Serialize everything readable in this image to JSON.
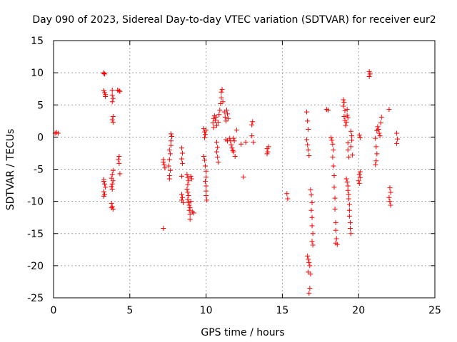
{
  "chart_data": {
    "type": "scatter",
    "title": "Day 090 of 2023, Sidereal Day-to-day VTEC variation (SDTVAR) for receiver eur2",
    "xlabel": "GPS time / hours",
    "ylabel": "SDTVAR / TECUs",
    "xlim": [
      0,
      25
    ],
    "ylim": [
      -25,
      15
    ],
    "xticks": [
      0,
      5,
      10,
      15,
      20,
      25
    ],
    "yticks": [
      -25,
      -20,
      -15,
      -10,
      -5,
      0,
      5,
      10,
      15
    ],
    "grid": true,
    "marker": "plus",
    "color": "#ff0000",
    "points": [
      [
        0.1,
        0.6
      ],
      [
        0.2,
        0.7
      ],
      [
        0.3,
        0.6
      ],
      [
        3.3,
        10.0
      ],
      [
        3.3,
        9.9
      ],
      [
        3.35,
        9.8
      ],
      [
        3.3,
        7.2
      ],
      [
        3.35,
        6.9
      ],
      [
        3.4,
        6.6
      ],
      [
        3.4,
        6.3
      ],
      [
        3.3,
        -6.6
      ],
      [
        3.3,
        -6.9
      ],
      [
        3.35,
        -7.3
      ],
      [
        3.4,
        -7.8
      ],
      [
        3.3,
        -8.5
      ],
      [
        3.35,
        -8.9
      ],
      [
        3.3,
        -9.2
      ],
      [
        3.85,
        7.3
      ],
      [
        3.85,
        6.5
      ],
      [
        3.9,
        6.0
      ],
      [
        3.85,
        5.5
      ],
      [
        3.9,
        3.2
      ],
      [
        3.85,
        2.7
      ],
      [
        3.9,
        2.3
      ],
      [
        3.9,
        -5.2
      ],
      [
        3.85,
        -5.8
      ],
      [
        3.8,
        -6.4
      ],
      [
        3.9,
        -6.8
      ],
      [
        3.85,
        -7.3
      ],
      [
        3.8,
        -7.7
      ],
      [
        3.85,
        -8.1
      ],
      [
        3.8,
        -10.3
      ],
      [
        3.85,
        -10.8
      ],
      [
        3.9,
        -11.2
      ],
      [
        3.8,
        -11.0
      ],
      [
        4.2,
        7.3
      ],
      [
        4.3,
        7.2
      ],
      [
        4.35,
        7.1
      ],
      [
        4.3,
        -3.0
      ],
      [
        4.25,
        -3.5
      ],
      [
        4.3,
        -4.1
      ],
      [
        4.35,
        -5.7
      ],
      [
        7.2,
        -14.2
      ],
      [
        7.2,
        -3.9
      ],
      [
        7.25,
        -4.3
      ],
      [
        7.3,
        -4.8
      ],
      [
        7.2,
        -3.5
      ],
      [
        7.55,
        -4.5
      ],
      [
        7.6,
        -3.5
      ],
      [
        7.65,
        -2.6
      ],
      [
        7.6,
        -2.0
      ],
      [
        7.7,
        -1.3
      ],
      [
        7.7,
        -0.6
      ],
      [
        7.75,
        0.1
      ],
      [
        7.7,
        0.5
      ],
      [
        7.65,
        -5.2
      ],
      [
        7.6,
        -6.0
      ],
      [
        7.6,
        -6.5
      ],
      [
        8.4,
        -1.7
      ],
      [
        8.45,
        -2.5
      ],
      [
        8.4,
        -3.4
      ],
      [
        8.45,
        -4.1
      ],
      [
        8.4,
        -6.1
      ],
      [
        8.4,
        -8.9
      ],
      [
        8.45,
        -9.4
      ],
      [
        8.4,
        -9.8
      ],
      [
        8.5,
        -10.2
      ],
      [
        8.75,
        -5.8
      ],
      [
        8.8,
        -6.3
      ],
      [
        8.85,
        -6.8
      ],
      [
        8.8,
        -7.4
      ],
      [
        8.75,
        -8.1
      ],
      [
        8.8,
        -8.6
      ],
      [
        8.85,
        -9.1
      ],
      [
        8.8,
        -9.7
      ],
      [
        8.85,
        -10.2
      ],
      [
        8.9,
        -10.6
      ],
      [
        8.95,
        -11.0
      ],
      [
        8.9,
        -11.4
      ],
      [
        8.95,
        -12.0
      ],
      [
        8.95,
        -12.8
      ],
      [
        9.0,
        -6.1
      ],
      [
        9.05,
        -6.5
      ],
      [
        9.0,
        -10.0
      ],
      [
        9.1,
        -11.6
      ],
      [
        9.2,
        -11.8
      ],
      [
        9.85,
        1.3
      ],
      [
        9.9,
        0.8
      ],
      [
        9.95,
        0.4
      ],
      [
        9.9,
        -0.1
      ],
      [
        9.85,
        -3.0
      ],
      [
        9.9,
        -3.6
      ],
      [
        9.95,
        -4.5
      ],
      [
        10.0,
        -5.3
      ],
      [
        10.0,
        -6.2
      ],
      [
        9.95,
        -6.9
      ],
      [
        10.0,
        -7.6
      ],
      [
        10.0,
        -8.4
      ],
      [
        10.0,
        -9.1
      ],
      [
        10.05,
        -9.8
      ],
      [
        10.0,
        1.1
      ],
      [
        10.45,
        2.2
      ],
      [
        10.5,
        2.9
      ],
      [
        10.55,
        3.3
      ],
      [
        10.5,
        1.5
      ],
      [
        10.6,
        2.6
      ],
      [
        10.65,
        3.1
      ],
      [
        10.7,
        1.8
      ],
      [
        10.7,
        -0.8
      ],
      [
        10.75,
        -1.6
      ],
      [
        10.7,
        -2.3
      ],
      [
        10.75,
        -3.1
      ],
      [
        10.8,
        -3.9
      ],
      [
        10.8,
        2.3
      ],
      [
        10.85,
        3.5
      ],
      [
        10.9,
        4.2
      ],
      [
        10.95,
        5.2
      ],
      [
        11.0,
        6.1
      ],
      [
        11.0,
        7.0
      ],
      [
        11.05,
        7.4
      ],
      [
        11.1,
        5.5
      ],
      [
        11.2,
        3.9
      ],
      [
        11.25,
        3.1
      ],
      [
        11.3,
        2.5
      ],
      [
        11.35,
        4.2
      ],
      [
        11.4,
        3.6
      ],
      [
        11.45,
        2.9
      ],
      [
        11.3,
        -0.4
      ],
      [
        11.4,
        -0.6
      ],
      [
        11.55,
        -0.2
      ],
      [
        11.6,
        -0.6
      ],
      [
        11.65,
        -1.2
      ],
      [
        11.7,
        -1.7
      ],
      [
        11.75,
        -2.1
      ],
      [
        11.8,
        -0.2
      ],
      [
        11.85,
        -0.6
      ],
      [
        11.9,
        -3.0
      ],
      [
        11.8,
        -2.3
      ],
      [
        12.0,
        1.1
      ],
      [
        12.3,
        -1.1
      ],
      [
        12.45,
        -6.2
      ],
      [
        12.6,
        -0.8
      ],
      [
        13.0,
        1.9
      ],
      [
        13.05,
        2.4
      ],
      [
        13.0,
        0.2
      ],
      [
        13.1,
        -0.8
      ],
      [
        14.0,
        -1.8
      ],
      [
        14.05,
        -2.3
      ],
      [
        14.0,
        -2.6
      ],
      [
        14.1,
        -1.5
      ],
      [
        15.3,
        -8.8
      ],
      [
        15.35,
        -9.6
      ],
      [
        16.6,
        3.9
      ],
      [
        16.65,
        2.5
      ],
      [
        16.7,
        1.2
      ],
      [
        16.6,
        -0.4
      ],
      [
        16.65,
        -1.2
      ],
      [
        16.7,
        -2.0
      ],
      [
        16.75,
        -2.9
      ],
      [
        16.65,
        -18.5
      ],
      [
        16.7,
        -19.0
      ],
      [
        16.75,
        -19.5
      ],
      [
        16.8,
        -20.0
      ],
      [
        16.7,
        -21.0
      ],
      [
        16.85,
        -21.3
      ],
      [
        16.8,
        -23.5
      ],
      [
        16.75,
        -24.3
      ],
      [
        16.85,
        -8.2
      ],
      [
        16.9,
        -9.0
      ],
      [
        16.95,
        -10.2
      ],
      [
        16.9,
        -11.4
      ],
      [
        16.95,
        -12.5
      ],
      [
        16.95,
        -13.8
      ],
      [
        17.0,
        -15.0
      ],
      [
        16.95,
        -16.2
      ],
      [
        17.0,
        -16.8
      ],
      [
        17.9,
        4.3
      ],
      [
        18.0,
        4.2
      ],
      [
        18.2,
        -0.1
      ],
      [
        18.25,
        -0.5
      ],
      [
        18.3,
        -1.1
      ],
      [
        18.35,
        -2.0
      ],
      [
        18.3,
        -3.1
      ],
      [
        18.35,
        -4.5
      ],
      [
        18.4,
        -6.0
      ],
      [
        18.4,
        -7.8
      ],
      [
        18.45,
        -9.5
      ],
      [
        18.45,
        -11.2
      ],
      [
        18.5,
        -13.3
      ],
      [
        18.5,
        -14.5
      ],
      [
        18.55,
        -15.8
      ],
      [
        18.5,
        -16.5
      ],
      [
        18.6,
        -16.7
      ],
      [
        19.0,
        5.8
      ],
      [
        19.05,
        5.4
      ],
      [
        19.0,
        4.8
      ],
      [
        19.1,
        4.1
      ],
      [
        19.05,
        3.2
      ],
      [
        19.1,
        2.6
      ],
      [
        19.15,
        1.8
      ],
      [
        19.2,
        2.3
      ],
      [
        19.25,
        3.4
      ],
      [
        19.25,
        4.3
      ],
      [
        19.3,
        3.0
      ],
      [
        19.3,
        -0.9
      ],
      [
        19.3,
        -2.0
      ],
      [
        19.35,
        -3.1
      ],
      [
        19.2,
        -6.5
      ],
      [
        19.25,
        -7.0
      ],
      [
        19.3,
        -7.6
      ],
      [
        19.3,
        -8.3
      ],
      [
        19.35,
        -8.9
      ],
      [
        19.35,
        -9.6
      ],
      [
        19.4,
        -10.5
      ],
      [
        19.4,
        -11.4
      ],
      [
        19.4,
        -12.3
      ],
      [
        19.45,
        -13.3
      ],
      [
        19.45,
        -14.2
      ],
      [
        19.5,
        -15.0
      ],
      [
        19.5,
        0.9
      ],
      [
        19.55,
        0.2
      ],
      [
        19.55,
        -0.5
      ],
      [
        19.5,
        -1.5
      ],
      [
        19.6,
        -2.8
      ],
      [
        20.05,
        0.3
      ],
      [
        20.1,
        -0.1
      ],
      [
        20.05,
        -5.8
      ],
      [
        20.1,
        -6.3
      ],
      [
        20.0,
        -6.8
      ],
      [
        20.05,
        -7.2
      ],
      [
        20.1,
        -5.4
      ],
      [
        20.7,
        10.2
      ],
      [
        20.75,
        9.8
      ],
      [
        20.7,
        9.4
      ],
      [
        21.1,
        -0.2
      ],
      [
        21.15,
        -1.5
      ],
      [
        21.2,
        -2.6
      ],
      [
        21.15,
        -3.7
      ],
      [
        21.1,
        -4.3
      ],
      [
        21.2,
        1.0
      ],
      [
        21.25,
        1.6
      ],
      [
        21.3,
        1.2
      ],
      [
        21.35,
        0.6
      ],
      [
        21.4,
        0.2
      ],
      [
        21.45,
        2.2
      ],
      [
        21.5,
        3.1
      ],
      [
        22.0,
        4.3
      ],
      [
        22.05,
        -7.9
      ],
      [
        22.1,
        -8.6
      ],
      [
        22.0,
        -9.4
      ],
      [
        22.05,
        -10.0
      ],
      [
        22.1,
        -10.6
      ],
      [
        22.5,
        0.6
      ],
      [
        22.55,
        -0.3
      ],
      [
        22.5,
        -1.0
      ]
    ]
  }
}
